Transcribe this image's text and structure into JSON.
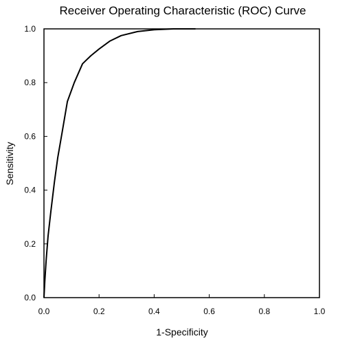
{
  "chart_data": {
    "type": "line",
    "title": "Receiver Operating Characteristic (ROC) Curve",
    "xlabel": "1-Specificity",
    "ylabel": "Sensitivity",
    "xlim": [
      0,
      1
    ],
    "ylim": [
      0,
      1
    ],
    "x_ticks": [
      "0.0",
      "0.2",
      "0.4",
      "0.6",
      "0.8",
      "1.0"
    ],
    "y_ticks": [
      "0.0",
      "0.2",
      "0.4",
      "0.6",
      "0.8",
      "1.0"
    ],
    "grid": false,
    "legend": "none",
    "series": [
      {
        "color": "#000000",
        "x": [
          0.0,
          0.003,
          0.008,
          0.015,
          0.025,
          0.038,
          0.05,
          0.065,
          0.085,
          0.11,
          0.14,
          0.17,
          0.2,
          0.24,
          0.28,
          0.34,
          0.4,
          0.47,
          0.55
        ],
        "y": [
          0.0,
          0.06,
          0.14,
          0.23,
          0.32,
          0.43,
          0.52,
          0.61,
          0.73,
          0.8,
          0.87,
          0.9,
          0.925,
          0.955,
          0.975,
          0.99,
          0.997,
          1.0,
          1.0
        ]
      }
    ]
  }
}
